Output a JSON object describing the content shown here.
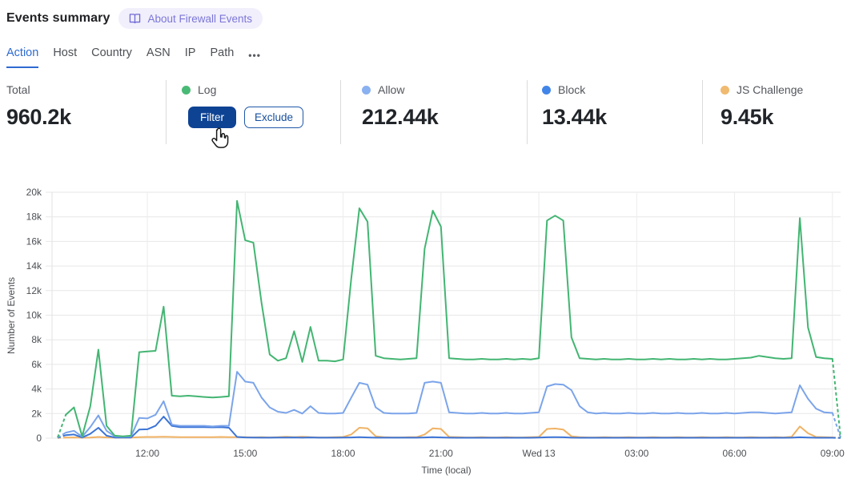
{
  "header": {
    "title": "Events summary",
    "about_label": "About Firewall Events"
  },
  "tabs": {
    "items": [
      {
        "label": "Action",
        "active": true
      },
      {
        "label": "Host",
        "active": false
      },
      {
        "label": "Country",
        "active": false
      },
      {
        "label": "ASN",
        "active": false
      },
      {
        "label": "IP",
        "active": false
      },
      {
        "label": "Path",
        "active": false
      },
      {
        "label": "•••",
        "active": false
      }
    ]
  },
  "stats": {
    "total": {
      "label": "Total",
      "value": "960.2k"
    },
    "log": {
      "label": "Log",
      "color": "#49ba75",
      "filter_label": "Filter",
      "exclude_label": "Exclude"
    },
    "allow": {
      "label": "Allow",
      "value": "212.44k",
      "color": "#8ab1f0"
    },
    "block": {
      "label": "Block",
      "value": "13.44k",
      "color": "#4285e8"
    },
    "js_challenge": {
      "label": "JS Challenge",
      "value": "9.45k",
      "color": "#f0ba70"
    }
  },
  "chart_data": {
    "type": "line",
    "title": "",
    "xlabel": "Time (local)",
    "ylabel": "Number of Events",
    "ylim": [
      0,
      20000
    ],
    "unit": "values are thousands of events per 15-min interval",
    "grid": true,
    "x_start_label": "09:15",
    "x_interval_minutes": 15,
    "boundary_segments_dashed": true,
    "ytick_labels": [
      "0",
      "2k",
      "4k",
      "6k",
      "8k",
      "10k",
      "12k",
      "14k",
      "16k",
      "18k",
      "20k"
    ],
    "xtick_labels": [
      "12:00",
      "15:00",
      "18:00",
      "21:00",
      "Wed 13",
      "03:00",
      "06:00",
      "09:00"
    ],
    "xtick_indices": [
      11,
      23,
      35,
      47,
      59,
      71,
      83,
      95
    ],
    "series": [
      {
        "name": "Log",
        "color": "#43b572",
        "values": [
          0.05,
          1.9,
          2.5,
          0.15,
          2.6,
          7.2,
          1.0,
          0.2,
          0.15,
          0.2,
          7.0,
          7.05,
          7.1,
          10.7,
          3.45,
          3.4,
          3.45,
          3.4,
          3.35,
          3.3,
          3.35,
          3.4,
          19.3,
          16.1,
          15.9,
          11.0,
          6.8,
          6.3,
          6.5,
          8.7,
          6.2,
          9.05,
          6.3,
          6.3,
          6.25,
          6.4,
          13.0,
          18.7,
          17.6,
          6.7,
          6.5,
          6.45,
          6.4,
          6.45,
          6.5,
          15.4,
          18.5,
          17.2,
          6.5,
          6.45,
          6.4,
          6.4,
          6.45,
          6.4,
          6.4,
          6.45,
          6.4,
          6.45,
          6.4,
          6.5,
          17.7,
          18.1,
          17.7,
          8.2,
          6.5,
          6.45,
          6.4,
          6.45,
          6.4,
          6.4,
          6.45,
          6.4,
          6.4,
          6.45,
          6.4,
          6.45,
          6.4,
          6.4,
          6.45,
          6.4,
          6.45,
          6.4,
          6.4,
          6.45,
          6.5,
          6.55,
          6.7,
          6.6,
          6.5,
          6.45,
          6.5,
          17.9,
          9.0,
          6.6,
          6.5,
          6.45,
          0.05
        ]
      },
      {
        "name": "Allow",
        "color": "#7ba4ea",
        "values": [
          0.05,
          0.45,
          0.6,
          0.12,
          0.9,
          1.85,
          0.6,
          0.15,
          0.12,
          0.15,
          1.65,
          1.6,
          1.9,
          3.0,
          1.1,
          1.0,
          1.0,
          1.0,
          1.0,
          0.95,
          1.0,
          1.0,
          5.4,
          4.6,
          4.5,
          3.3,
          2.5,
          2.15,
          2.05,
          2.3,
          2.0,
          2.6,
          2.05,
          2.0,
          2.0,
          2.05,
          3.3,
          4.5,
          4.35,
          2.5,
          2.05,
          2.0,
          2.0,
          2.0,
          2.05,
          4.5,
          4.6,
          4.5,
          2.1,
          2.05,
          2.0,
          2.0,
          2.05,
          2.0,
          2.0,
          2.05,
          2.0,
          2.0,
          2.05,
          2.1,
          4.2,
          4.4,
          4.35,
          3.9,
          2.6,
          2.1,
          2.0,
          2.05,
          2.0,
          2.0,
          2.05,
          2.0,
          2.0,
          2.05,
          2.0,
          2.0,
          2.05,
          2.0,
          2.0,
          2.05,
          2.0,
          2.0,
          2.05,
          2.0,
          2.05,
          2.1,
          2.1,
          2.05,
          2.0,
          2.05,
          2.1,
          4.3,
          3.2,
          2.4,
          2.1,
          2.05,
          0.05
        ]
      },
      {
        "name": "Block",
        "color": "#3c74d6",
        "values": [
          0.03,
          0.25,
          0.3,
          0.05,
          0.35,
          0.85,
          0.2,
          0.05,
          0.05,
          0.05,
          0.7,
          0.72,
          1.0,
          1.75,
          1.0,
          0.9,
          0.9,
          0.9,
          0.9,
          0.88,
          0.9,
          0.85,
          0.1,
          0.06,
          0.05,
          0.04,
          0.04,
          0.05,
          0.05,
          0.06,
          0.04,
          0.06,
          0.04,
          0.04,
          0.04,
          0.05,
          0.06,
          0.08,
          0.06,
          0.04,
          0.04,
          0.04,
          0.04,
          0.04,
          0.04,
          0.06,
          0.08,
          0.06,
          0.04,
          0.03,
          0.03,
          0.03,
          0.03,
          0.03,
          0.03,
          0.03,
          0.03,
          0.03,
          0.03,
          0.05,
          0.07,
          0.08,
          0.07,
          0.04,
          0.03,
          0.03,
          0.03,
          0.03,
          0.03,
          0.03,
          0.03,
          0.03,
          0.03,
          0.03,
          0.03,
          0.03,
          0.03,
          0.03,
          0.03,
          0.03,
          0.03,
          0.03,
          0.03,
          0.03,
          0.03,
          0.03,
          0.03,
          0.03,
          0.03,
          0.03,
          0.04,
          0.07,
          0.05,
          0.03,
          0.03,
          0.03,
          0.02
        ]
      },
      {
        "name": "JS Challenge",
        "color": "#f0b264",
        "values": [
          0.02,
          0.05,
          0.06,
          0.04,
          0.05,
          0.1,
          0.06,
          0.04,
          0.04,
          0.05,
          0.08,
          0.1,
          0.1,
          0.12,
          0.1,
          0.08,
          0.08,
          0.08,
          0.08,
          0.08,
          0.1,
          0.08,
          0.08,
          0.08,
          0.06,
          0.08,
          0.06,
          0.08,
          0.12,
          0.08,
          0.12,
          0.08,
          0.06,
          0.06,
          0.08,
          0.1,
          0.3,
          0.85,
          0.8,
          0.15,
          0.08,
          0.06,
          0.06,
          0.08,
          0.08,
          0.3,
          0.8,
          0.75,
          0.1,
          0.08,
          0.06,
          0.06,
          0.08,
          0.06,
          0.06,
          0.08,
          0.06,
          0.06,
          0.08,
          0.1,
          0.75,
          0.78,
          0.7,
          0.15,
          0.08,
          0.06,
          0.06,
          0.08,
          0.06,
          0.06,
          0.08,
          0.06,
          0.06,
          0.08,
          0.06,
          0.06,
          0.08,
          0.06,
          0.06,
          0.08,
          0.06,
          0.06,
          0.08,
          0.06,
          0.06,
          0.08,
          0.06,
          0.06,
          0.08,
          0.06,
          0.12,
          0.95,
          0.4,
          0.1,
          0.08,
          0.06,
          0.02
        ]
      }
    ]
  }
}
